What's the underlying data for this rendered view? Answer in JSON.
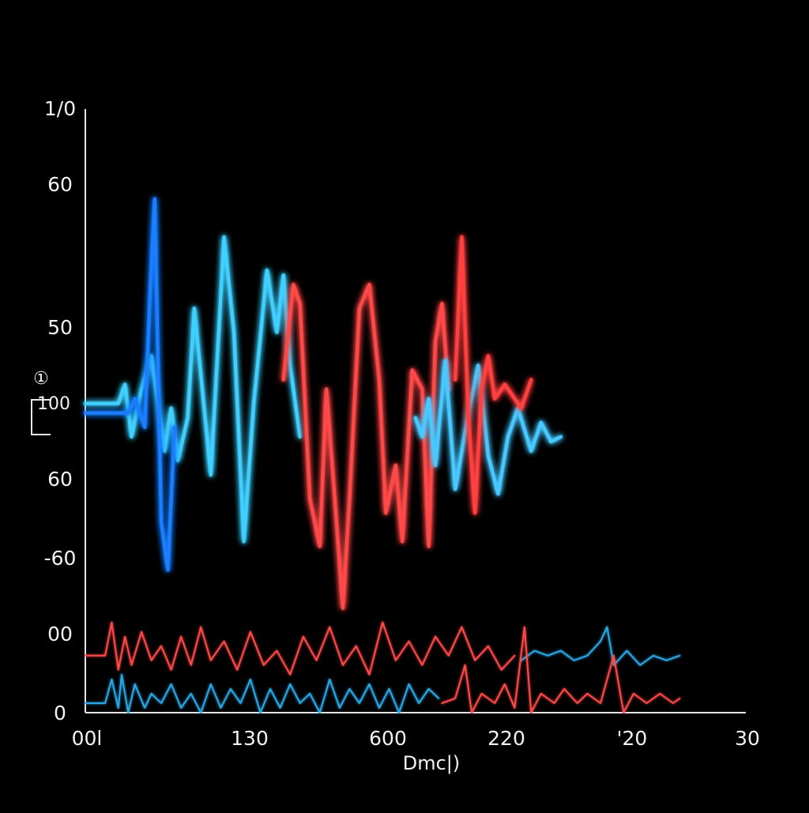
{
  "chart_data": {
    "type": "line",
    "title": "",
    "xlabel": "Dmc|)",
    "ylabel": "",
    "side_mark": "①",
    "side_mark_secondary": "100",
    "x_ticks": [
      "00l",
      "130",
      "600",
      "220",
      "'20",
      "30"
    ],
    "y_ticks": [
      "1/0",
      "60",
      "50",
      "60",
      "-60",
      "00",
      "0"
    ],
    "grid": false,
    "legend": "none",
    "series": [
      {
        "color": "#3fd0ff",
        "style": "glow",
        "points": [
          [
            0,
            0.65
          ],
          [
            0.05,
            0.65
          ],
          [
            0.06,
            0.69
          ],
          [
            0.07,
            0.58
          ],
          [
            0.085,
            0.68
          ],
          [
            0.1,
            0.75
          ],
          [
            0.12,
            0.55
          ],
          [
            0.13,
            0.64
          ],
          [
            0.14,
            0.53
          ],
          [
            0.155,
            0.62
          ],
          [
            0.165,
            0.85
          ],
          [
            0.19,
            0.5
          ],
          [
            0.21,
            1.0
          ],
          [
            0.225,
            0.8
          ],
          [
            0.24,
            0.36
          ],
          [
            0.255,
            0.65
          ],
          [
            0.275,
            0.93
          ],
          [
            0.29,
            0.8
          ],
          [
            0.3,
            0.92
          ],
          [
            0.31,
            0.73
          ],
          [
            0.325,
            0.58
          ]
        ]
      },
      {
        "color": "#1e7dff",
        "style": "glow",
        "points": [
          [
            0.0,
            0.63
          ],
          [
            0.065,
            0.63
          ],
          [
            0.075,
            0.66
          ],
          [
            0.09,
            0.6
          ],
          [
            0.098,
            0.88
          ],
          [
            0.105,
            1.08
          ],
          [
            0.115,
            0.4
          ],
          [
            0.125,
            0.3
          ],
          [
            0.135,
            0.6
          ]
        ]
      },
      {
        "color": "#ff4a4a",
        "style": "glow",
        "points": [
          [
            0.3,
            0.7
          ],
          [
            0.315,
            0.9
          ],
          [
            0.325,
            0.86
          ],
          [
            0.34,
            0.45
          ],
          [
            0.355,
            0.35
          ],
          [
            0.365,
            0.68
          ],
          [
            0.375,
            0.5
          ],
          [
            0.39,
            0.22
          ],
          [
            0.4,
            0.45
          ],
          [
            0.415,
            0.85
          ],
          [
            0.43,
            0.9
          ],
          [
            0.445,
            0.7
          ],
          [
            0.455,
            0.42
          ],
          [
            0.47,
            0.52
          ],
          [
            0.48,
            0.36
          ],
          [
            0.495,
            0.72
          ],
          [
            0.51,
            0.68
          ],
          [
            0.52,
            0.35
          ],
          [
            0.53,
            0.78
          ],
          [
            0.54,
            0.86
          ],
          [
            0.55,
            0.68
          ]
        ]
      },
      {
        "color": "#48c8ff",
        "style": "glow",
        "points": [
          [
            0.5,
            0.62
          ],
          [
            0.51,
            0.58
          ],
          [
            0.52,
            0.66
          ],
          [
            0.53,
            0.52
          ],
          [
            0.545,
            0.74
          ],
          [
            0.56,
            0.47
          ],
          [
            0.58,
            0.63
          ],
          [
            0.595,
            0.73
          ],
          [
            0.61,
            0.54
          ],
          [
            0.625,
            0.46
          ],
          [
            0.64,
            0.58
          ],
          [
            0.655,
            0.64
          ],
          [
            0.675,
            0.55
          ],
          [
            0.69,
            0.61
          ],
          [
            0.705,
            0.57
          ],
          [
            0.72,
            0.58
          ]
        ]
      },
      {
        "color": "#ff4040",
        "style": "glow",
        "points": [
          [
            0.56,
            0.7
          ],
          [
            0.57,
            1.0
          ],
          [
            0.58,
            0.62
          ],
          [
            0.59,
            0.42
          ],
          [
            0.6,
            0.68
          ],
          [
            0.61,
            0.75
          ],
          [
            0.62,
            0.66
          ],
          [
            0.635,
            0.69
          ],
          [
            0.66,
            0.64
          ],
          [
            0.675,
            0.7
          ]
        ]
      },
      {
        "color": "#ff4a4a",
        "style": "thin",
        "points": [
          [
            0,
            0.12
          ],
          [
            0.03,
            0.12
          ],
          [
            0.04,
            0.19
          ],
          [
            0.05,
            0.09
          ],
          [
            0.06,
            0.16
          ],
          [
            0.07,
            0.1
          ],
          [
            0.085,
            0.17
          ],
          [
            0.1,
            0.11
          ],
          [
            0.115,
            0.14
          ],
          [
            0.13,
            0.09
          ],
          [
            0.145,
            0.16
          ],
          [
            0.16,
            0.1
          ],
          [
            0.175,
            0.18
          ],
          [
            0.19,
            0.11
          ],
          [
            0.21,
            0.15
          ],
          [
            0.23,
            0.09
          ],
          [
            0.25,
            0.17
          ],
          [
            0.27,
            0.1
          ],
          [
            0.29,
            0.13
          ],
          [
            0.31,
            0.08
          ],
          [
            0.33,
            0.16
          ],
          [
            0.35,
            0.11
          ],
          [
            0.37,
            0.18
          ],
          [
            0.39,
            0.1
          ],
          [
            0.41,
            0.14
          ],
          [
            0.43,
            0.08
          ],
          [
            0.45,
            0.19
          ],
          [
            0.47,
            0.11
          ],
          [
            0.49,
            0.15
          ],
          [
            0.51,
            0.1
          ],
          [
            0.53,
            0.16
          ],
          [
            0.55,
            0.12
          ],
          [
            0.57,
            0.18
          ],
          [
            0.59,
            0.11
          ],
          [
            0.61,
            0.14
          ],
          [
            0.63,
            0.09
          ],
          [
            0.65,
            0.12
          ]
        ]
      },
      {
        "color": "#2aa8e6",
        "style": "thin",
        "points": [
          [
            0.66,
            0.11
          ],
          [
            0.68,
            0.13
          ],
          [
            0.7,
            0.12
          ],
          [
            0.72,
            0.13
          ],
          [
            0.74,
            0.11
          ],
          [
            0.76,
            0.12
          ],
          [
            0.78,
            0.15
          ],
          [
            0.79,
            0.18
          ],
          [
            0.8,
            0.1
          ],
          [
            0.82,
            0.13
          ],
          [
            0.84,
            0.1
          ],
          [
            0.86,
            0.12
          ],
          [
            0.88,
            0.11
          ],
          [
            0.9,
            0.12
          ]
        ]
      },
      {
        "color": "#2aa8e6",
        "style": "thin",
        "points": [
          [
            0,
            0.02
          ],
          [
            0.03,
            0.02
          ],
          [
            0.04,
            0.07
          ],
          [
            0.05,
            0.01
          ],
          [
            0.055,
            0.08
          ],
          [
            0.065,
            0.0
          ],
          [
            0.075,
            0.06
          ],
          [
            0.09,
            0.01
          ],
          [
            0.1,
            0.04
          ],
          [
            0.115,
            0.02
          ],
          [
            0.13,
            0.06
          ],
          [
            0.145,
            0.01
          ],
          [
            0.16,
            0.04
          ],
          [
            0.175,
            0.0
          ],
          [
            0.19,
            0.06
          ],
          [
            0.205,
            0.01
          ],
          [
            0.22,
            0.05
          ],
          [
            0.235,
            0.02
          ],
          [
            0.25,
            0.07
          ],
          [
            0.265,
            0.0
          ],
          [
            0.28,
            0.05
          ],
          [
            0.295,
            0.01
          ],
          [
            0.31,
            0.06
          ],
          [
            0.325,
            0.02
          ],
          [
            0.34,
            0.04
          ],
          [
            0.355,
            0.0
          ],
          [
            0.37,
            0.07
          ],
          [
            0.385,
            0.01
          ],
          [
            0.4,
            0.05
          ],
          [
            0.415,
            0.02
          ],
          [
            0.43,
            0.06
          ],
          [
            0.445,
            0.01
          ],
          [
            0.46,
            0.05
          ],
          [
            0.475,
            0.0
          ],
          [
            0.49,
            0.06
          ],
          [
            0.505,
            0.02
          ],
          [
            0.52,
            0.05
          ],
          [
            0.535,
            0.03
          ]
        ]
      },
      {
        "color": "#ff4a4a",
        "style": "thin",
        "points": [
          [
            0.54,
            0.02
          ],
          [
            0.56,
            0.03
          ],
          [
            0.575,
            0.1
          ],
          [
            0.585,
            0.0
          ],
          [
            0.6,
            0.04
          ],
          [
            0.62,
            0.02
          ],
          [
            0.635,
            0.06
          ],
          [
            0.65,
            0.01
          ],
          [
            0.665,
            0.18
          ],
          [
            0.675,
            0.0
          ],
          [
            0.69,
            0.04
          ],
          [
            0.71,
            0.02
          ],
          [
            0.725,
            0.05
          ],
          [
            0.745,
            0.02
          ],
          [
            0.76,
            0.04
          ],
          [
            0.78,
            0.02
          ],
          [
            0.8,
            0.12
          ],
          [
            0.815,
            0.0
          ],
          [
            0.83,
            0.04
          ],
          [
            0.85,
            0.02
          ],
          [
            0.87,
            0.04
          ],
          [
            0.89,
            0.02
          ],
          [
            0.9,
            0.03
          ]
        ]
      }
    ]
  }
}
